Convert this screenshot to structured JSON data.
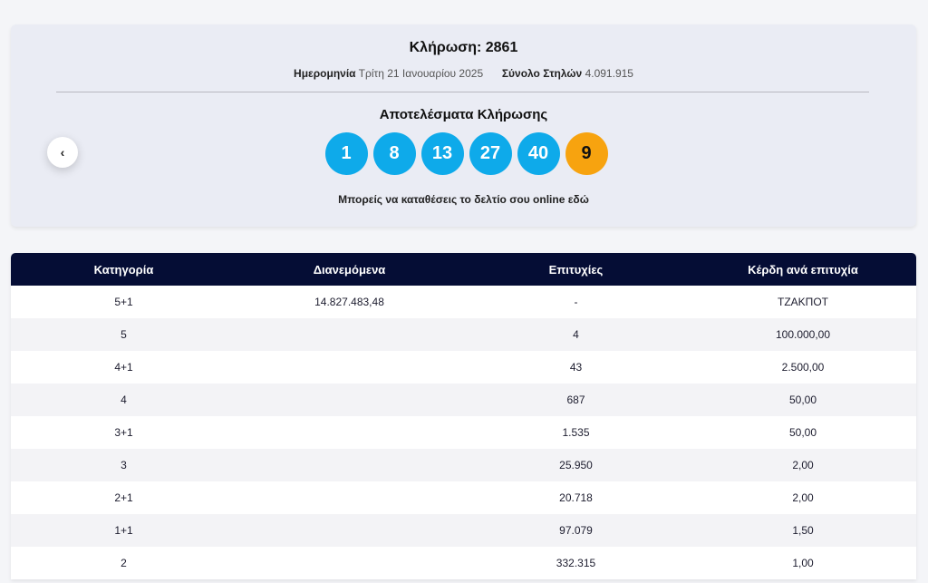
{
  "draw": {
    "title": "Κλήρωση: 2861",
    "date_label": "Ημερομηνία",
    "date_value": "Τρίτη 21 Ιανουαρίου 2025",
    "columns_label": "Σύνολο Στηλών",
    "columns_value": "4.091.915",
    "results_title": "Αποτελέσματα Κλήρωσης",
    "numbers": [
      "1",
      "8",
      "13",
      "27",
      "40"
    ],
    "bonus_number": "9",
    "online_text": "Μπορείς να καταθέσεις το δελτίο σου online εδώ",
    "prev_icon": "‹"
  },
  "colors": {
    "ball": "#0eaaea",
    "bonus_ball": "#f7a30f",
    "table_header": "#050d35"
  },
  "table": {
    "headers": [
      "Κατηγορία",
      "Διανεμόμενα",
      "Επιτυχίες",
      "Κέρδη ανά επιτυχία"
    ],
    "rows": [
      [
        "5+1",
        "14.827.483,48",
        "-",
        "ΤΖΑΚΠΟΤ"
      ],
      [
        "5",
        "",
        "4",
        "100.000,00"
      ],
      [
        "4+1",
        "",
        "43",
        "2.500,00"
      ],
      [
        "4",
        "",
        "687",
        "50,00"
      ],
      [
        "3+1",
        "",
        "1.535",
        "50,00"
      ],
      [
        "3",
        "",
        "25.950",
        "2,00"
      ],
      [
        "2+1",
        "",
        "20.718",
        "2,00"
      ],
      [
        "1+1",
        "",
        "97.079",
        "1,50"
      ],
      [
        "2",
        "",
        "332.315",
        "1,00"
      ]
    ]
  }
}
